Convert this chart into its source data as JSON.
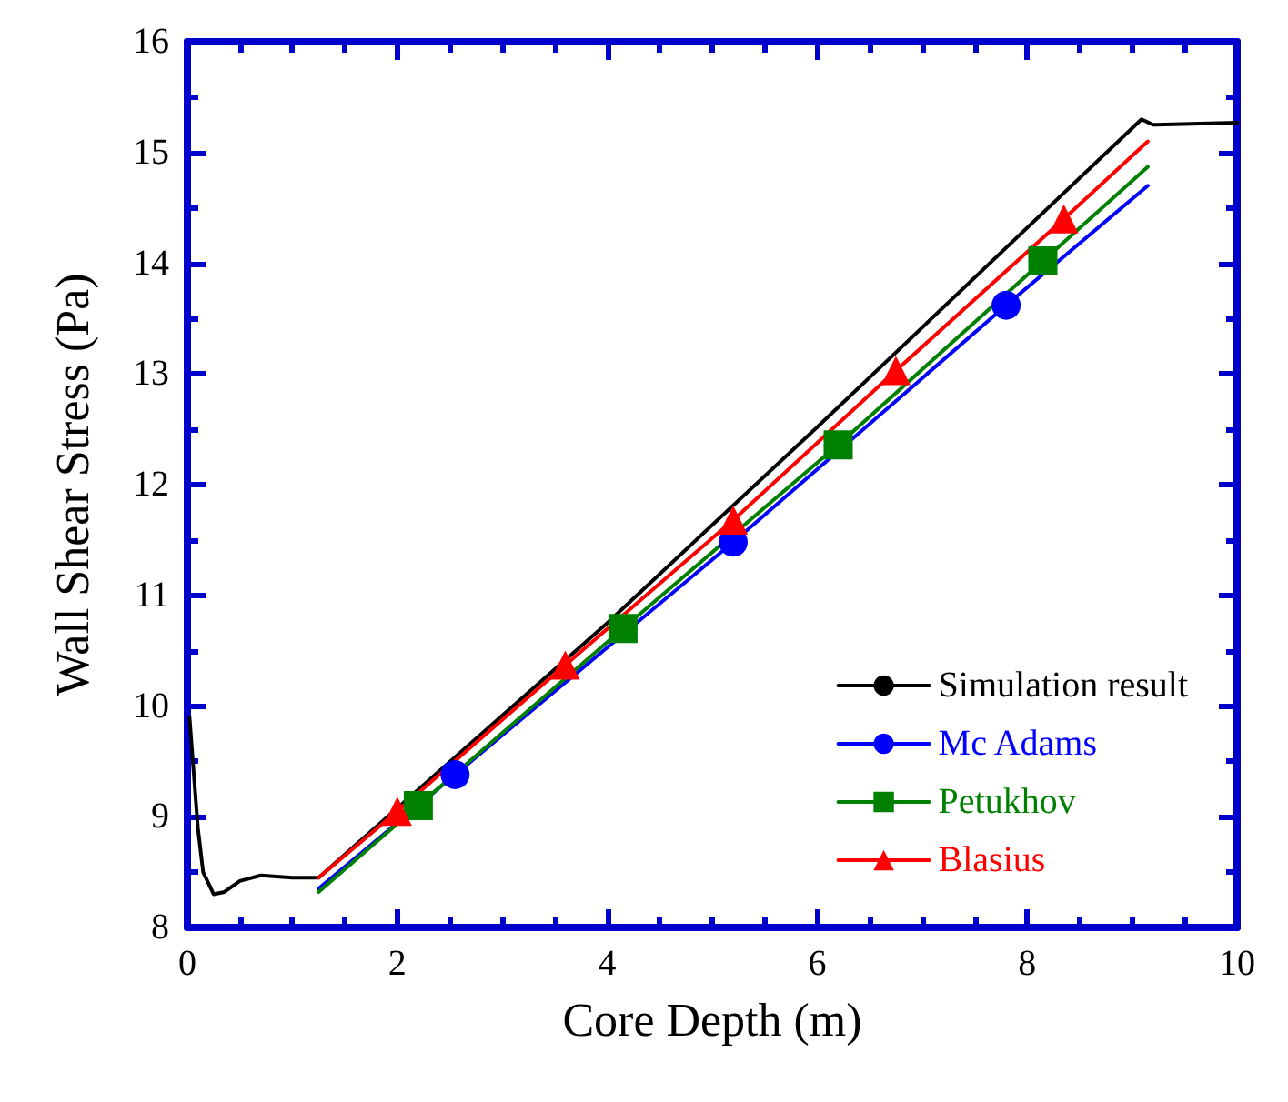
{
  "chart_data": {
    "type": "line",
    "xlabel": "Core Depth (m)",
    "ylabel": "Wall Shear Stress (Pa)",
    "xlim": [
      0,
      10
    ],
    "ylim": [
      8,
      16
    ],
    "xticks": [
      0,
      2,
      4,
      6,
      8,
      10
    ],
    "yticks": [
      8,
      9,
      10,
      11,
      12,
      13,
      14,
      15,
      16
    ],
    "grid": false,
    "legend": "bottom right",
    "line_style": "solid",
    "series": [
      {
        "name": "Simulation result",
        "color": "#000000",
        "marker": "none",
        "x": [
          0.02,
          0.1,
          0.15,
          0.25,
          0.35,
          0.5,
          0.7,
          1.0,
          1.25,
          4.0,
          6.0,
          9.09,
          9.2,
          10
        ],
        "values": [
          9.9,
          8.9,
          8.5,
          8.3,
          8.32,
          8.42,
          8.47,
          8.45,
          8.45,
          10.75,
          12.52,
          15.3,
          15.25,
          15.27
        ]
      },
      {
        "name": "Mc Adams",
        "color": "#0000ff",
        "marker": "circle",
        "x": [
          1.25,
          2.55,
          5.2,
          7.8,
          9.15
        ],
        "values": [
          8.35,
          9.38,
          11.48,
          13.62,
          14.7
        ]
      },
      {
        "name": "Petukhov",
        "color": "#008000",
        "marker": "square",
        "x": [
          1.25,
          2.2,
          4.15,
          6.2,
          8.15,
          9.15
        ],
        "values": [
          8.32,
          9.1,
          10.7,
          12.36,
          14.02,
          14.87
        ]
      },
      {
        "name": "Blasius",
        "color": "#ff0000",
        "marker": "triangle",
        "x": [
          1.25,
          2.0,
          3.6,
          5.2,
          6.75,
          8.35,
          9.15
        ],
        "values": [
          8.45,
          9.05,
          10.37,
          11.68,
          13.03,
          14.4,
          15.1
        ]
      }
    ]
  }
}
